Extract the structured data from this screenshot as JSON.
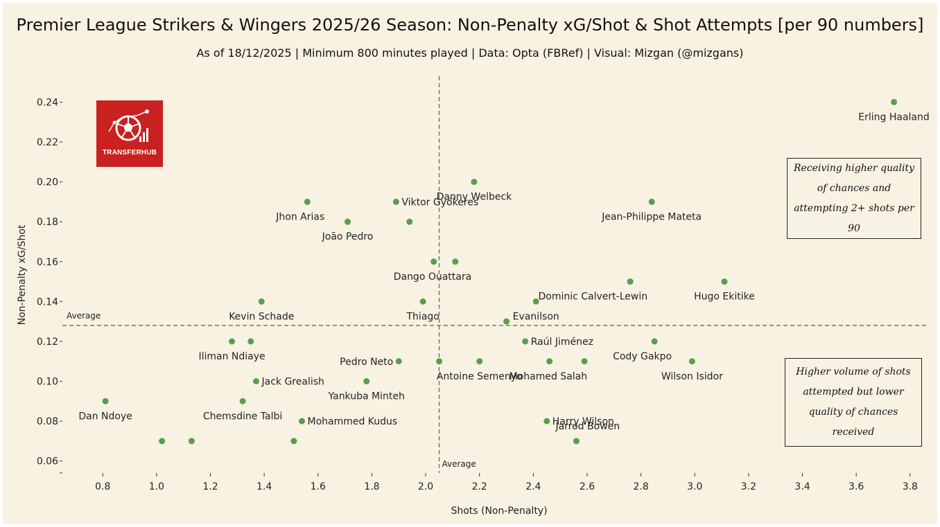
{
  "chart_data": {
    "type": "scatter",
    "title": "Premier League Strikers & Wingers 2025/26 Season: Non-Penalty xG/Shot & Shot Attempts [per 90 numbers]",
    "subtitle": "As of 18/12/2025 | Minimum 800 minutes played | Data: Opta (FBRef) | Visual: Mizgan (@mizgans)",
    "xlabel": "Shots (Non-Penalty)",
    "ylabel": "Non-Penalty xG/Shot",
    "xlim": [
      0.65,
      3.87
    ],
    "ylim": [
      0.054,
      0.253
    ],
    "xticks": [
      0.8,
      1.0,
      1.2,
      1.4,
      1.6,
      1.8,
      2.0,
      2.2,
      2.4,
      2.6,
      2.8,
      3.0,
      3.2,
      3.4,
      3.6,
      3.8
    ],
    "xtick_labels": [
      "0.8",
      "1.0",
      "1.2",
      "1.4",
      "1.6",
      "1.8",
      "2.0",
      "2.2",
      "2.4",
      "2.6",
      "2.8",
      "3.0",
      "3.2",
      "3.4",
      "3.6",
      "3.8"
    ],
    "yticks": [
      0.06,
      0.08,
      0.1,
      0.12,
      0.14,
      0.16,
      0.18,
      0.2,
      0.22,
      0.24
    ],
    "ytick_labels": [
      "0.06",
      "0.08",
      "0.10",
      "0.12",
      "0.14",
      "0.16",
      "0.18",
      "0.20",
      "0.22",
      "0.24"
    ],
    "average_x": 2.05,
    "average_y": 0.128,
    "average_label": "Average",
    "point_color": "#5a9e4b",
    "points": [
      {
        "x": 3.74,
        "y": 0.24,
        "label": "Erling Haaland",
        "lpos": "below"
      },
      {
        "x": 2.18,
        "y": 0.2,
        "label": "Danny Welbeck",
        "lpos": "below"
      },
      {
        "x": 1.56,
        "y": 0.19,
        "label": "Jhon Arias",
        "lpos": "below-left"
      },
      {
        "x": 1.89,
        "y": 0.19,
        "label": "Viktor Gyökeres",
        "lpos": "right"
      },
      {
        "x": 2.84,
        "y": 0.19,
        "label": "Jean-Philippe Mateta",
        "lpos": "below"
      },
      {
        "x": 1.71,
        "y": 0.18,
        "label": "João Pedro",
        "lpos": "below"
      },
      {
        "x": 1.94,
        "y": 0.18,
        "label": "",
        "lpos": "none"
      },
      {
        "x": 2.03,
        "y": 0.16,
        "label": "Dango Ouattara",
        "lpos": "below-right"
      },
      {
        "x": 2.11,
        "y": 0.16,
        "label": "",
        "lpos": "none"
      },
      {
        "x": 2.76,
        "y": 0.15,
        "label": "Dominic Calvert-Lewin",
        "lpos": "below-left"
      },
      {
        "x": 3.11,
        "y": 0.15,
        "label": "Hugo Ekitike",
        "lpos": "below"
      },
      {
        "x": 1.39,
        "y": 0.14,
        "label": "Kevin Schade",
        "lpos": "below"
      },
      {
        "x": 1.99,
        "y": 0.14,
        "label": "Thiago",
        "lpos": "below"
      },
      {
        "x": 2.41,
        "y": 0.14,
        "label": "Evanilson",
        "lpos": "below"
      },
      {
        "x": 2.3,
        "y": 0.13,
        "label": "",
        "lpos": "none"
      },
      {
        "x": 1.28,
        "y": 0.12,
        "label": "Iliman Ndiaye",
        "lpos": "below"
      },
      {
        "x": 1.35,
        "y": 0.12,
        "label": "",
        "lpos": "none"
      },
      {
        "x": 2.37,
        "y": 0.12,
        "label": "Raúl Jiménez",
        "lpos": "right"
      },
      {
        "x": 2.85,
        "y": 0.12,
        "label": "Cody Gakpo",
        "lpos": "below-left"
      },
      {
        "x": 1.9,
        "y": 0.11,
        "label": "Pedro Neto",
        "lpos": "left"
      },
      {
        "x": 2.05,
        "y": 0.11,
        "label": "",
        "lpos": "none"
      },
      {
        "x": 2.2,
        "y": 0.11,
        "label": "Antoine Semenyo",
        "lpos": "below"
      },
      {
        "x": 2.46,
        "y": 0.11,
        "label": "Mohamed Salah",
        "lpos": "below-right"
      },
      {
        "x": 2.59,
        "y": 0.11,
        "label": "",
        "lpos": "none"
      },
      {
        "x": 2.99,
        "y": 0.11,
        "label": "Wilson Isidor",
        "lpos": "below"
      },
      {
        "x": 1.37,
        "y": 0.1,
        "label": "Jack Grealish",
        "lpos": "right"
      },
      {
        "x": 1.78,
        "y": 0.1,
        "label": "Yankuba Minteh",
        "lpos": "below"
      },
      {
        "x": 0.81,
        "y": 0.09,
        "label": "Dan Ndoye",
        "lpos": "below"
      },
      {
        "x": 1.32,
        "y": 0.09,
        "label": "Chemsdine Talbi",
        "lpos": "below"
      },
      {
        "x": 1.54,
        "y": 0.08,
        "label": "Mohammed Kudus",
        "lpos": "right"
      },
      {
        "x": 2.45,
        "y": 0.08,
        "label": "Harry Wilson",
        "lpos": "right"
      },
      {
        "x": 2.56,
        "y": 0.07,
        "label": "Jarrod Bowen",
        "lpos": "above-right"
      },
      {
        "x": 1.02,
        "y": 0.07,
        "label": "",
        "lpos": "none"
      },
      {
        "x": 1.13,
        "y": 0.07,
        "label": "",
        "lpos": "none"
      },
      {
        "x": 1.51,
        "y": 0.07,
        "label": "",
        "lpos": "none"
      }
    ],
    "annotations": {
      "top_right": "Receiving higher quality of chances and attempting 2+ shots per 90",
      "bottom_right": "Higher volume of shots attempted but lower quality of chances received"
    }
  },
  "logo": {
    "text": "TRANSFERHUB",
    "icon": "soccer-ball-chart-icon"
  }
}
